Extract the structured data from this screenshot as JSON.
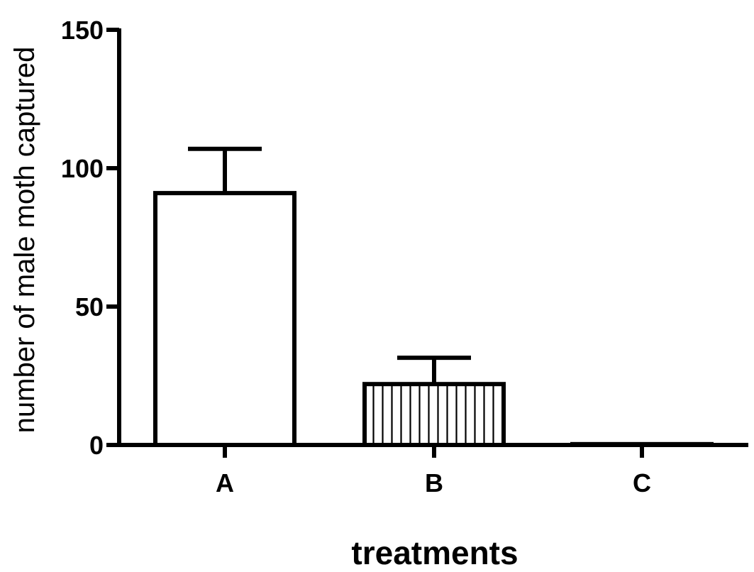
{
  "chart_data": {
    "type": "bar",
    "title": "",
    "xlabel": "treatments",
    "ylabel": "number of male moth captured",
    "categories": [
      "A",
      "B",
      "C"
    ],
    "values": [
      91,
      22,
      0.3
    ],
    "error_upper": [
      107,
      31.5,
      0.3
    ],
    "bar_patterns": [
      "none",
      "vertical-lines",
      "none"
    ],
    "ylim": [
      0,
      150
    ],
    "yticks": [
      0,
      50,
      100,
      150
    ],
    "grid": false,
    "legend": "none",
    "colors": {
      "bar_fill": "#ffffff",
      "stroke": "#000000",
      "background": "#ffffff"
    }
  }
}
